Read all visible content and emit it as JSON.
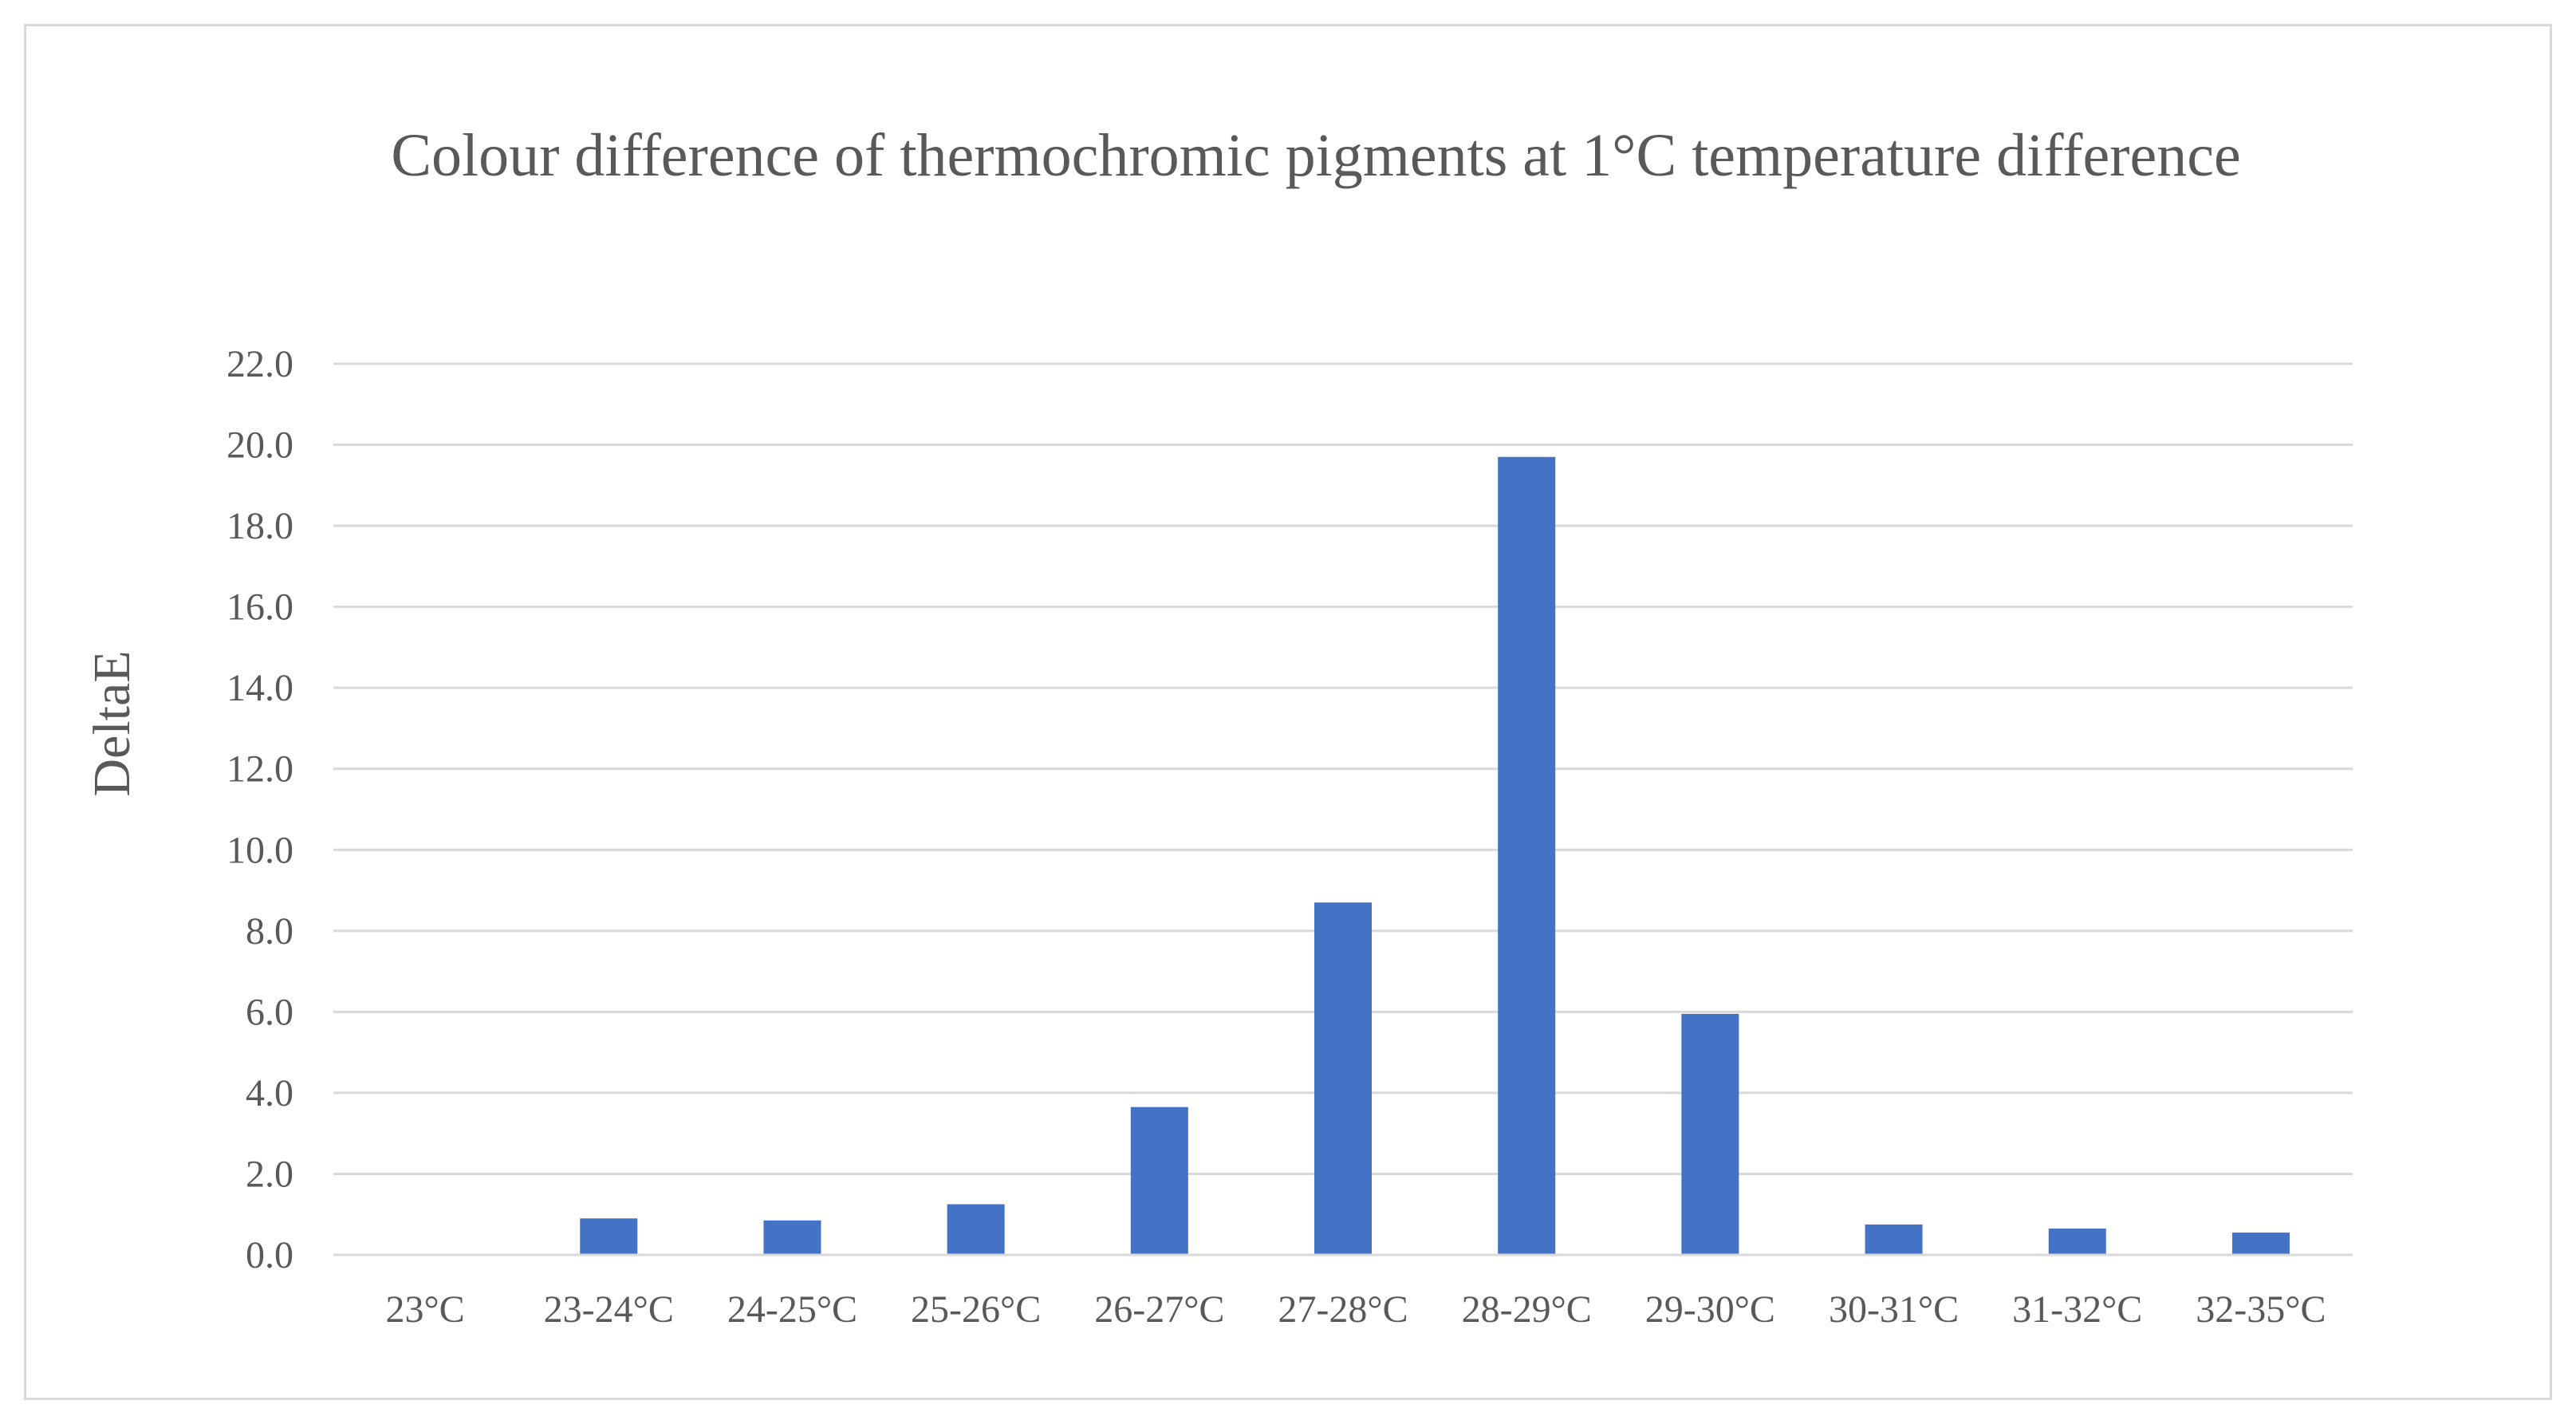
{
  "chart_data": {
    "type": "bar",
    "title": "Colour difference of thermochromic pigments at 1°C temperature difference",
    "xlabel": "",
    "ylabel": "DeltaE",
    "categories": [
      "23°C",
      "23-24°C",
      "24-25°C",
      "25-26°C",
      "26-27°C",
      "27-28°C",
      "28-29°C",
      "29-30°C",
      "30-31°C",
      "31-32°C",
      "32-35°C"
    ],
    "values": [
      0.0,
      0.9,
      0.85,
      1.25,
      3.65,
      8.7,
      19.7,
      5.95,
      0.75,
      0.65,
      0.55
    ],
    "ylim": [
      0,
      22
    ],
    "yticks": [
      "0.0",
      "2.0",
      "4.0",
      "6.0",
      "8.0",
      "10.0",
      "12.0",
      "14.0",
      "16.0",
      "18.0",
      "20.0",
      "22.0"
    ],
    "grid": true,
    "legend": "none",
    "bar_color": "#4472C4"
  }
}
